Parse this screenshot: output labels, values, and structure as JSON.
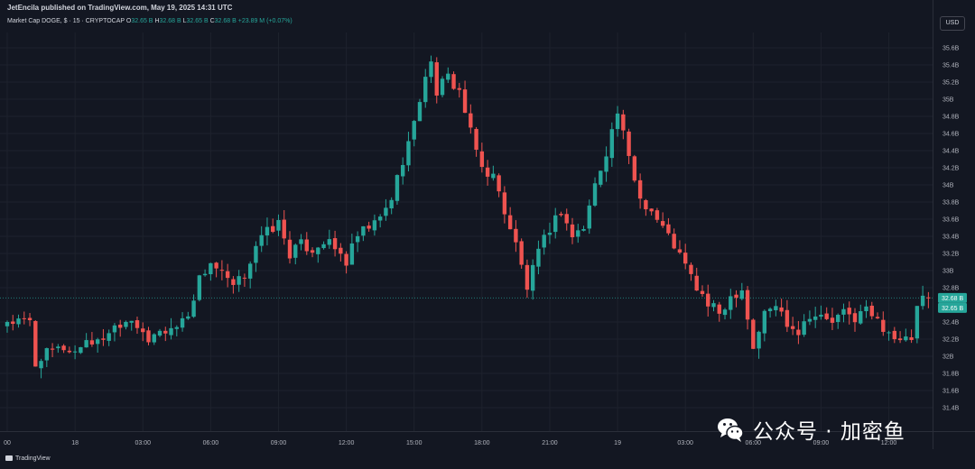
{
  "header": {
    "published": "JetEncila published on TradingView.com, May 19, 2025 14:31 UTC",
    "symbol_title": "Market Cap DOGE, $ · 15 · CRYPTOCAP",
    "ohlc": {
      "o_label": "O",
      "o": "32.65 B",
      "h_label": "H",
      "h": "32.68 B",
      "l_label": "L",
      "l": "32.65 B",
      "c_label": "C",
      "c": "32.68 B",
      "change": "+23.89 M (+0.07%)"
    }
  },
  "currency": "USD",
  "price_labels": {
    "last": "32.68 B",
    "current": "32.65 B"
  },
  "footer": {
    "brand": "TradingView"
  },
  "watermark": {
    "text": "公众号 · 加密鱼"
  },
  "colors": {
    "background": "#131722",
    "up": "#26a69a",
    "down": "#ef5350",
    "grid": "#1e222d",
    "text": "#b2b5be"
  },
  "chart_data": {
    "type": "candlestick",
    "unit": "B USD",
    "ylim": [
      31.25,
      35.75
    ],
    "grid": true,
    "y_ticks": [
      {
        "value": 31.4,
        "label": "31.4B"
      },
      {
        "value": 31.6,
        "label": "31.6B"
      },
      {
        "value": 31.8,
        "label": "31.8B"
      },
      {
        "value": 32.0,
        "label": "32B"
      },
      {
        "value": 32.2,
        "label": "32.2B"
      },
      {
        "value": 32.4,
        "label": "32.4B"
      },
      {
        "value": 32.8,
        "label": "32.8B"
      },
      {
        "value": 33.0,
        "label": "33B"
      },
      {
        "value": 33.2,
        "label": "33.2B"
      },
      {
        "value": 33.4,
        "label": "33.4B"
      },
      {
        "value": 33.6,
        "label": "33.6B"
      },
      {
        "value": 33.8,
        "label": "33.8B"
      },
      {
        "value": 34.0,
        "label": "34B"
      },
      {
        "value": 34.2,
        "label": "34.2B"
      },
      {
        "value": 34.4,
        "label": "34.4B"
      },
      {
        "value": 34.6,
        "label": "34.6B"
      },
      {
        "value": 34.8,
        "label": "34.8B"
      },
      {
        "value": 35.0,
        "label": "35B"
      },
      {
        "value": 35.2,
        "label": "35.2B"
      },
      {
        "value": 35.4,
        "label": "35.4B"
      },
      {
        "value": 35.6,
        "label": "35.6B"
      }
    ],
    "x_ticks": [
      {
        "index": 0,
        "label": "00"
      },
      {
        "index": 12,
        "label": "18"
      },
      {
        "index": 24,
        "label": "03:00"
      },
      {
        "index": 36,
        "label": "06:00"
      },
      {
        "index": 48,
        "label": "09:00"
      },
      {
        "index": 60,
        "label": "12:00"
      },
      {
        "index": 72,
        "label": "15:00"
      },
      {
        "index": 84,
        "label": "18:00"
      },
      {
        "index": 96,
        "label": "21:00"
      },
      {
        "index": 108,
        "label": "19"
      },
      {
        "index": 120,
        "label": "03:00"
      },
      {
        "index": 132,
        "label": "06:00"
      },
      {
        "index": 144,
        "label": "09:00"
      },
      {
        "index": 156,
        "label": "12:00"
      }
    ],
    "last_price": 32.68,
    "current_price": 32.65,
    "close_anchors": [
      [
        0,
        32.4
      ],
      [
        4,
        32.4
      ],
      [
        5,
        31.9
      ],
      [
        6,
        32.0
      ],
      [
        8,
        32.05
      ],
      [
        10,
        32.1
      ],
      [
        12,
        32.05
      ],
      [
        14,
        32.2
      ],
      [
        16,
        32.15
      ],
      [
        18,
        32.3
      ],
      [
        20,
        32.4
      ],
      [
        22,
        32.45
      ],
      [
        24,
        32.3
      ],
      [
        25,
        32.1
      ],
      [
        26,
        32.25
      ],
      [
        28,
        32.3
      ],
      [
        30,
        32.35
      ],
      [
        32,
        32.5
      ],
      [
        34,
        32.9
      ],
      [
        36,
        33.1
      ],
      [
        38,
        32.95
      ],
      [
        40,
        32.8
      ],
      [
        42,
        32.95
      ],
      [
        44,
        33.3
      ],
      [
        46,
        33.45
      ],
      [
        48,
        33.55
      ],
      [
        50,
        33.2
      ],
      [
        52,
        33.3
      ],
      [
        54,
        33.25
      ],
      [
        56,
        33.35
      ],
      [
        58,
        33.25
      ],
      [
        60,
        33.1
      ],
      [
        62,
        33.4
      ],
      [
        64,
        33.5
      ],
      [
        66,
        33.6
      ],
      [
        68,
        33.85
      ],
      [
        70,
        34.3
      ],
      [
        72,
        34.7
      ],
      [
        74,
        35.3
      ],
      [
        75,
        35.4
      ],
      [
        76,
        35.1
      ],
      [
        78,
        35.25
      ],
      [
        80,
        35.1
      ],
      [
        82,
        34.6
      ],
      [
        84,
        34.2
      ],
      [
        86,
        34.1
      ],
      [
        88,
        33.7
      ],
      [
        90,
        33.3
      ],
      [
        92,
        32.8
      ],
      [
        94,
        33.2
      ],
      [
        96,
        33.5
      ],
      [
        98,
        33.7
      ],
      [
        100,
        33.4
      ],
      [
        102,
        33.5
      ],
      [
        104,
        34.0
      ],
      [
        106,
        34.4
      ],
      [
        108,
        34.85
      ],
      [
        110,
        34.3
      ],
      [
        112,
        33.85
      ],
      [
        114,
        33.7
      ],
      [
        116,
        33.5
      ],
      [
        118,
        33.3
      ],
      [
        120,
        33.05
      ],
      [
        122,
        32.8
      ],
      [
        124,
        32.6
      ],
      [
        126,
        32.5
      ],
      [
        128,
        32.7
      ],
      [
        130,
        32.8
      ],
      [
        132,
        32.1
      ],
      [
        134,
        32.5
      ],
      [
        136,
        32.6
      ],
      [
        138,
        32.4
      ],
      [
        140,
        32.3
      ],
      [
        142,
        32.5
      ],
      [
        144,
        32.45
      ],
      [
        146,
        32.4
      ],
      [
        148,
        32.5
      ],
      [
        150,
        32.45
      ],
      [
        152,
        32.55
      ],
      [
        154,
        32.4
      ],
      [
        156,
        32.3
      ],
      [
        158,
        32.15
      ],
      [
        160,
        32.2
      ],
      [
        161,
        32.55
      ],
      [
        162,
        32.65
      ],
      [
        163,
        32.68
      ]
    ]
  }
}
